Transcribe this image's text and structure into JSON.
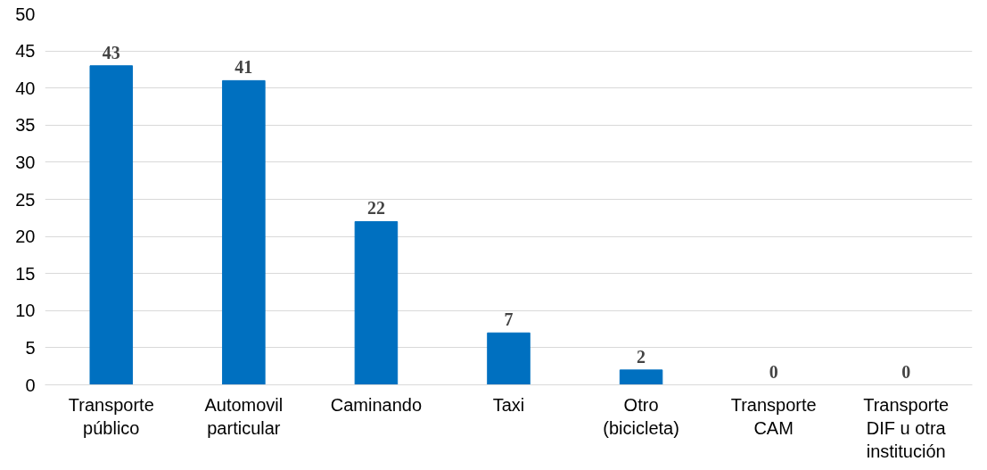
{
  "chart_data": {
    "type": "bar",
    "categories": [
      "Transporte público",
      "Automovil particular",
      "Caminando",
      "Taxi",
      "Otro (bicicleta)",
      "Transporte CAM",
      "Transporte DIF u otra institución"
    ],
    "values": [
      43,
      41,
      22,
      7,
      2,
      0,
      0
    ],
    "color": "#0070c0",
    "ylim": [
      0,
      50
    ],
    "yticks": [
      0,
      5,
      10,
      15,
      20,
      25,
      30,
      35,
      40,
      45,
      50
    ],
    "grid": "y",
    "data_labels": true
  }
}
